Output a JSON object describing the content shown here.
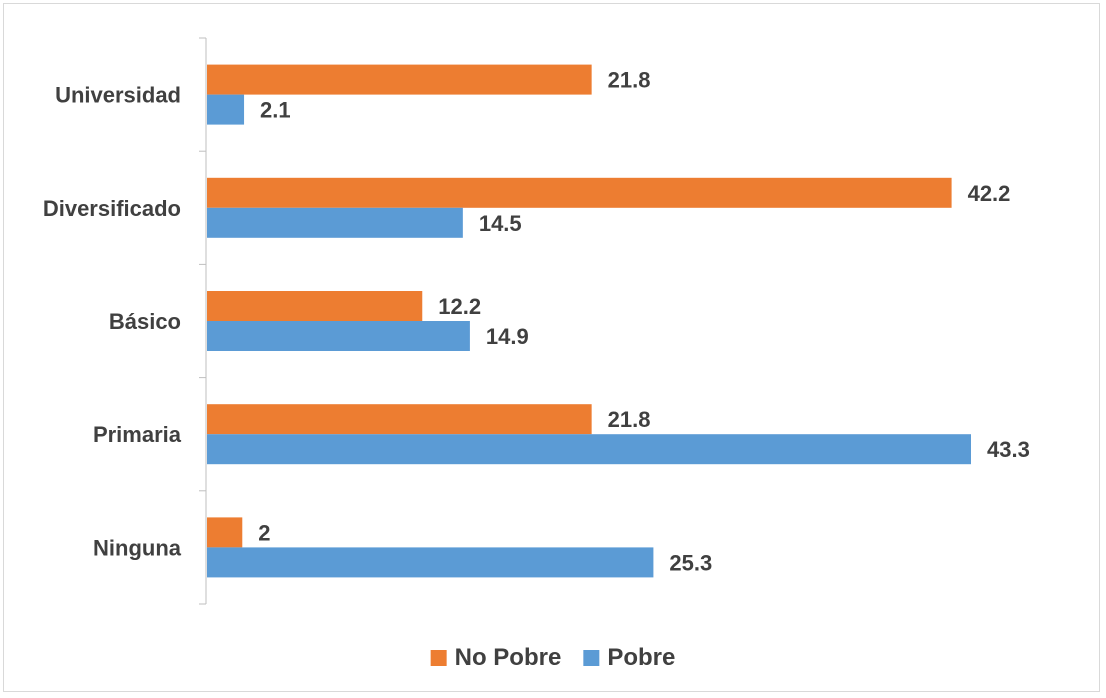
{
  "chart_data": {
    "type": "bar",
    "orientation": "horizontal",
    "categories": [
      "Universidad",
      "Diversificado",
      "Básico",
      "Primaria",
      "Ninguna"
    ],
    "series": [
      {
        "name": "No Pobre",
        "color": "#ED7D31",
        "values": [
          21.8,
          42.2,
          12.2,
          21.8,
          2
        ]
      },
      {
        "name": "Pobre",
        "color": "#5B9BD5",
        "values": [
          2.1,
          14.5,
          14.9,
          43.3,
          25.3
        ]
      }
    ],
    "value_labels": {
      "No Pobre": [
        "21.8",
        "42.2",
        "12.2",
        "21.8",
        "2"
      ],
      "Pobre": [
        "2.1",
        "14.5",
        "14.9",
        "43.3",
        "25.3"
      ]
    },
    "xlim": [
      0,
      43.3
    ],
    "grid": false,
    "legend_position": "bottom",
    "title": "",
    "xlabel": "",
    "ylabel": ""
  }
}
